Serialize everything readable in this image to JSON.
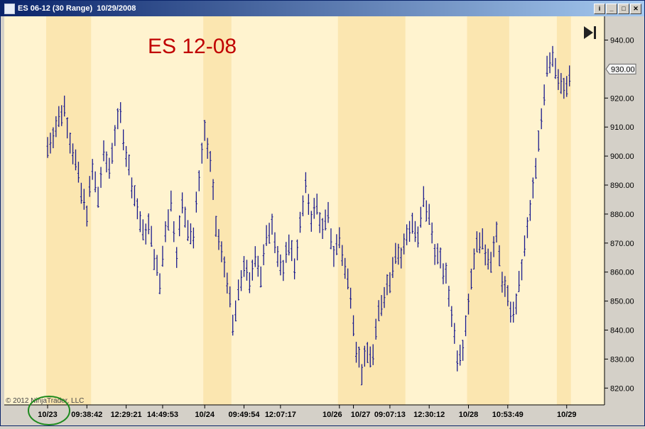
{
  "window": {
    "title": "ES 06-12 (30 Range)  10/29/2008",
    "buttons": {
      "help": "i",
      "minimize": "_",
      "maximize": "□",
      "close": "✕"
    }
  },
  "colors": {
    "plot_bg": "#fff3cf",
    "session_band": "#fbe6b0",
    "bar": "#1a1a8c",
    "annotation": "#c00000",
    "circle": "#1e8a1e"
  },
  "chart_data": {
    "type": "range-bar",
    "title": "ES 12-08",
    "copyright": "© 2012 NinjaTrader, LLC",
    "last_price_label": "930.00",
    "last_price": 930,
    "ylim": [
      815,
      945
    ],
    "yticks": [
      "820.00",
      "830.00",
      "840.00",
      "850.00",
      "860.00",
      "870.00",
      "880.00",
      "890.00",
      "900.00",
      "910.00",
      "920.00",
      "930.00",
      "940.00"
    ],
    "xticks": [
      {
        "bar": 0,
        "label": "10/23"
      },
      {
        "bar": 14,
        "label": "09:38:42"
      },
      {
        "bar": 28,
        "label": "12:29:21"
      },
      {
        "bar": 41,
        "label": "14:49:53"
      },
      {
        "bar": 56,
        "label": "10/24"
      },
      {
        "bar": 70,
        "label": "09:49:54"
      },
      {
        "bar": 83,
        "label": "12:07:17"
      },
      {
        "bar": 104,
        "label": "10/26"
      },
      {
        "bar": 109,
        "label": "10/27"
      },
      {
        "bar": 122,
        "label": "09:07:13"
      },
      {
        "bar": 136,
        "label": "12:30:12"
      },
      {
        "bar": 150,
        "label": "10/28"
      },
      {
        "bar": 164,
        "label": "10:53:49"
      },
      {
        "bar": 185,
        "label": "10/29"
      }
    ],
    "sessions": [
      [
        0,
        15
      ],
      [
        56,
        65
      ],
      [
        104,
        127
      ],
      [
        150,
        164
      ],
      [
        182,
        186
      ]
    ],
    "path_anchors": [
      [
        0,
        903
      ],
      [
        4,
        913
      ],
      [
        6,
        917
      ],
      [
        8,
        906
      ],
      [
        10,
        898
      ],
      [
        12,
        887
      ],
      [
        14,
        881
      ],
      [
        16,
        895
      ],
      [
        18,
        886
      ],
      [
        20,
        900
      ],
      [
        22,
        896
      ],
      [
        24,
        908
      ],
      [
        26,
        914
      ],
      [
        28,
        901
      ],
      [
        30,
        891
      ],
      [
        32,
        882
      ],
      [
        34,
        873
      ],
      [
        36,
        876
      ],
      [
        38,
        866
      ],
      [
        40,
        856
      ],
      [
        42,
        875
      ],
      [
        44,
        884
      ],
      [
        46,
        867
      ],
      [
        48,
        883
      ],
      [
        50,
        876
      ],
      [
        52,
        872
      ],
      [
        54,
        893
      ],
      [
        56,
        909
      ],
      [
        58,
        897
      ],
      [
        60,
        876
      ],
      [
        62,
        866
      ],
      [
        64,
        858
      ],
      [
        66,
        841
      ],
      [
        68,
        852
      ],
      [
        70,
        863
      ],
      [
        72,
        855
      ],
      [
        74,
        867
      ],
      [
        76,
        859
      ],
      [
        78,
        871
      ],
      [
        80,
        878
      ],
      [
        82,
        866
      ],
      [
        84,
        859
      ],
      [
        86,
        871
      ],
      [
        88,
        862
      ],
      [
        90,
        876
      ],
      [
        92,
        889
      ],
      [
        94,
        879
      ],
      [
        96,
        883
      ],
      [
        98,
        874
      ],
      [
        100,
        879
      ],
      [
        102,
        866
      ],
      [
        104,
        872
      ],
      [
        106,
        861
      ],
      [
        108,
        853
      ],
      [
        110,
        834
      ],
      [
        112,
        826
      ],
      [
        114,
        832
      ],
      [
        116,
        831
      ],
      [
        118,
        846
      ],
      [
        120,
        853
      ],
      [
        122,
        858
      ],
      [
        124,
        868
      ],
      [
        126,
        865
      ],
      [
        128,
        873
      ],
      [
        130,
        877
      ],
      [
        132,
        871
      ],
      [
        134,
        885
      ],
      [
        136,
        879
      ],
      [
        138,
        868
      ],
      [
        140,
        863
      ],
      [
        142,
        858
      ],
      [
        144,
        846
      ],
      [
        146,
        831
      ],
      [
        148,
        835
      ],
      [
        150,
        850
      ],
      [
        152,
        866
      ],
      [
        154,
        872
      ],
      [
        156,
        867
      ],
      [
        158,
        865
      ],
      [
        160,
        872
      ],
      [
        162,
        858
      ],
      [
        164,
        850
      ],
      [
        166,
        845
      ],
      [
        168,
        855
      ],
      [
        170,
        868
      ],
      [
        172,
        881
      ],
      [
        174,
        895
      ],
      [
        176,
        913
      ],
      [
        178,
        932
      ],
      [
        180,
        935
      ],
      [
        182,
        928
      ],
      [
        184,
        922
      ],
      [
        186,
        926
      ]
    ]
  }
}
